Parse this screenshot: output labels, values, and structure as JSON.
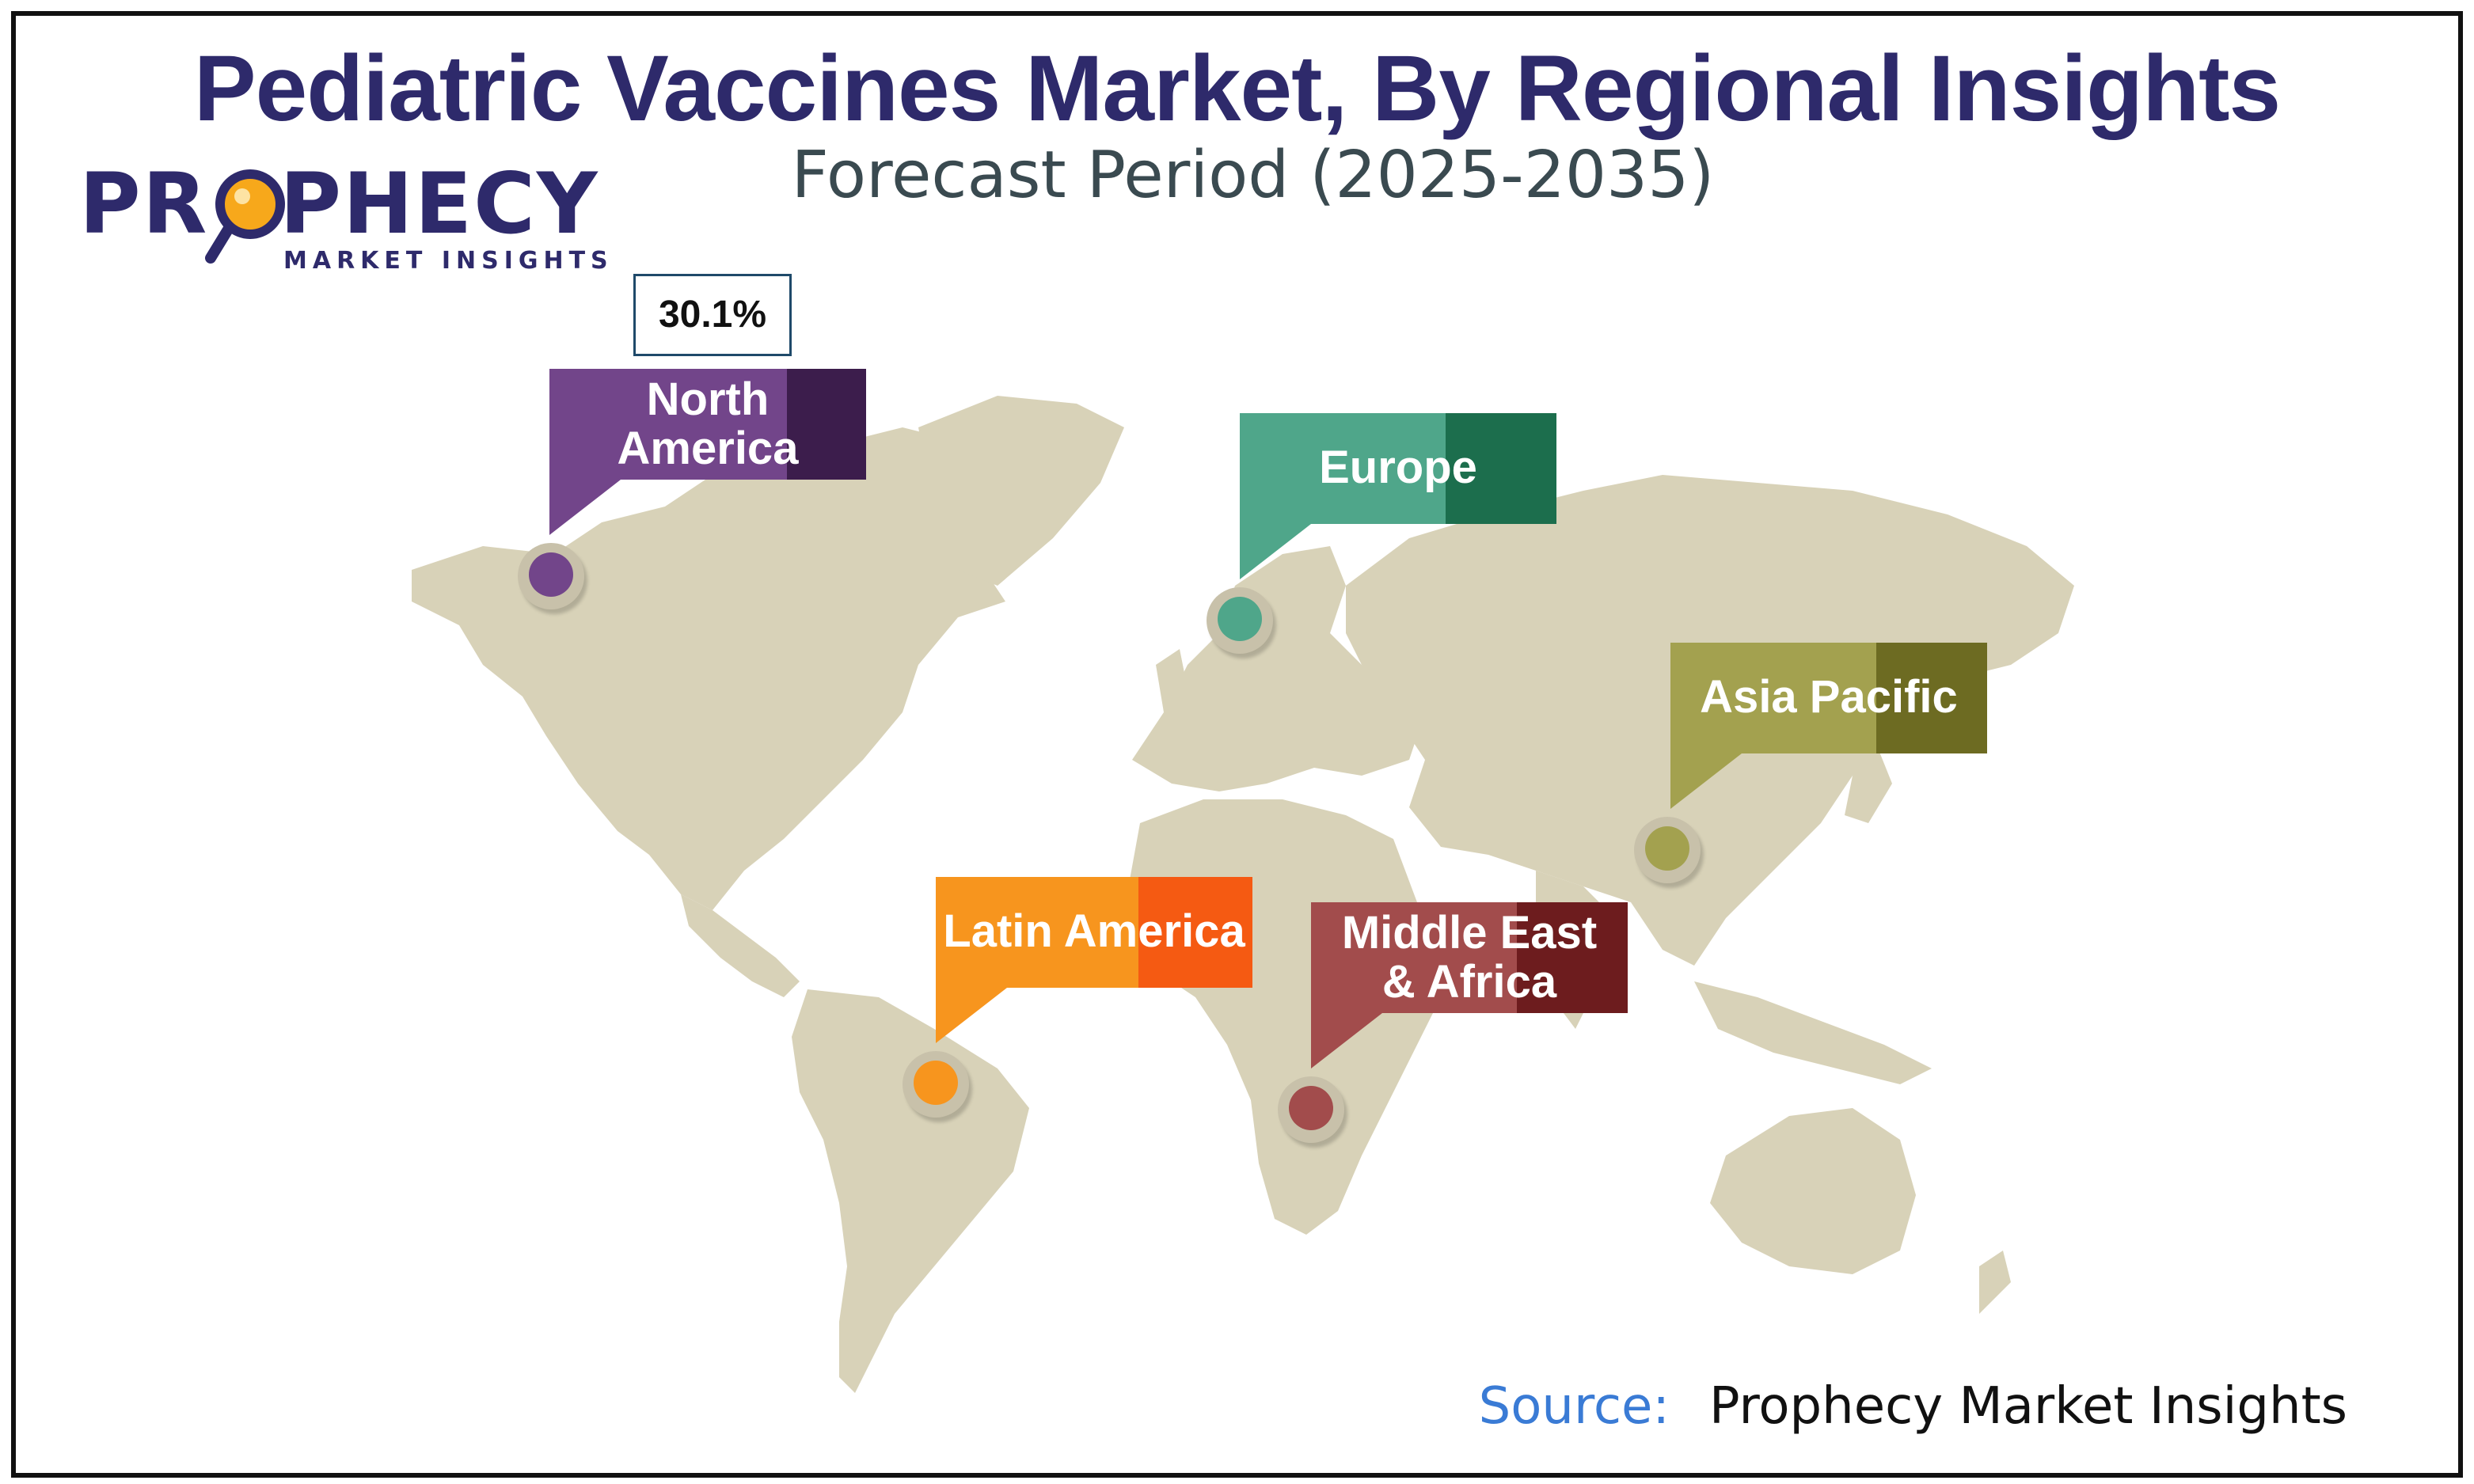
{
  "title": "Pediatric Vaccines Market, By Regional Insights",
  "subtitle": "Forecast Period (2025-2035)",
  "logo": {
    "brand": "PROPHECY",
    "tagline": "MARKET INSIGHTS",
    "icon": "magnifier-icon"
  },
  "highlight_value": "30.1%",
  "regions": [
    {
      "id": "north-america",
      "label_lines": [
        "North",
        "America"
      ],
      "color": "#72458a",
      "dark_color": "#3c1d4c"
    },
    {
      "id": "europe",
      "label_lines": [
        "Europe"
      ],
      "color": "#4fa68a",
      "dark_color": "#1c6e4d"
    },
    {
      "id": "asia-pacific",
      "label_lines": [
        "Asia Pacific"
      ],
      "color": "#a3a14f",
      "dark_color": "#6d6b22"
    },
    {
      "id": "latin-america",
      "label_lines": [
        "Latin America"
      ],
      "color": "#f7951e",
      "dark_color": "#f55a12"
    },
    {
      "id": "middle-east-africa",
      "label_lines": [
        "Middle East",
        "& Africa"
      ],
      "color": "#a24c4c",
      "dark_color": "#6d1c1e"
    }
  ],
  "source": {
    "label": "Source:",
    "value": "Prophecy Market Insights"
  },
  "colors": {
    "title": "#2e2a6b",
    "land": "#d8d2b8",
    "accent": "#f7a81b"
  }
}
